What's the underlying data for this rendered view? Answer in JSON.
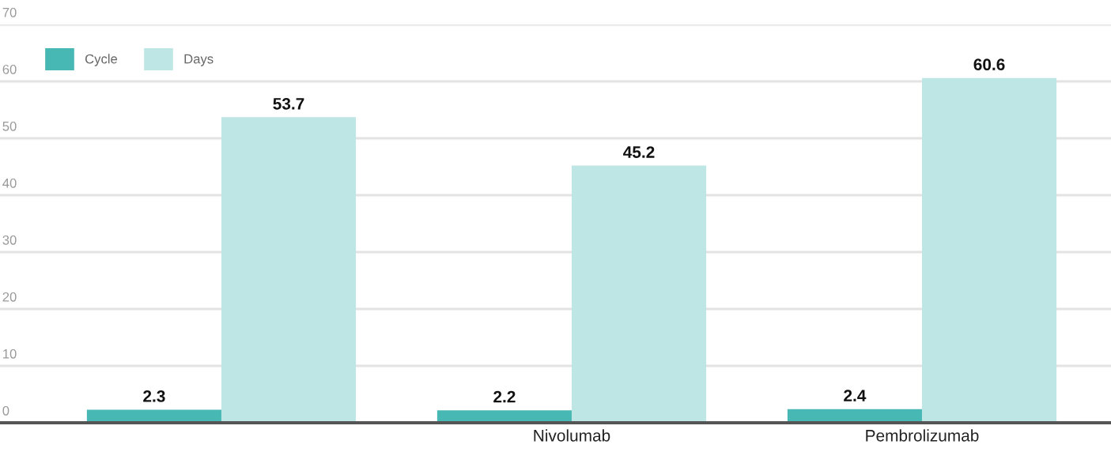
{
  "chart_data": {
    "type": "bar",
    "categories": [
      null,
      "Nivolumab",
      "Pembrolizumab"
    ],
    "series": [
      {
        "name": "Cycle",
        "color": "#48b8b5",
        "values": [
          2.3,
          2.2,
          2.4
        ]
      },
      {
        "name": "Days",
        "color": "#bee6e4",
        "values": [
          53.7,
          45.2,
          60.6
        ]
      }
    ],
    "ylim": [
      0,
      70
    ],
    "yticks": [
      0,
      10,
      20,
      30,
      40,
      50,
      60,
      70
    ],
    "grid": "y",
    "legend": "top left",
    "data_labels": true
  }
}
